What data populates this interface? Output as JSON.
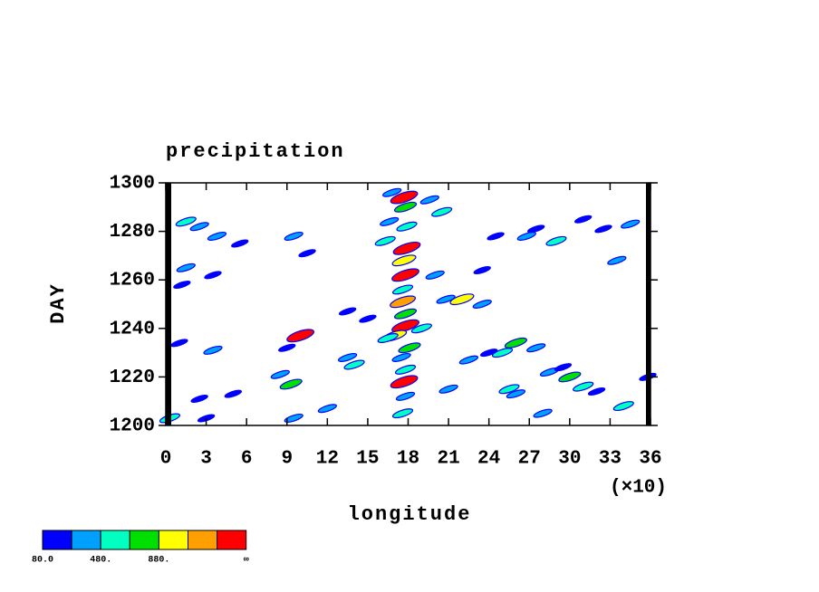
{
  "chart_data": {
    "type": "contour",
    "title": "precipitation",
    "xlabel": "longitude",
    "ylabel": "DAY",
    "x_multiplier": "(×10)",
    "xlim": [
      0,
      36
    ],
    "xticks": [
      0,
      3,
      6,
      9,
      12,
      15,
      18,
      21,
      24,
      27,
      30,
      33,
      36
    ],
    "ylim": [
      1200,
      1300
    ],
    "yticks": [
      1200,
      1220,
      1240,
      1260,
      1280,
      1300
    ],
    "levels": [
      80,
      280,
      480,
      680,
      880,
      1080,
      1280
    ],
    "colors": [
      "#0000ff",
      "#00a0ff",
      "#00ffc0",
      "#00e000",
      "#ffff00",
      "#ffa000",
      "#ff0000"
    ],
    "colorbar_labels": [
      {
        "value": 80,
        "label": "80.0"
      },
      {
        "value": 480,
        "label": "480."
      },
      {
        "value": 880,
        "label": "880."
      }
    ],
    "colorbar_max_label": "∞",
    "x": [
      17.7,
      17.8,
      17.9,
      17.9,
      17.7,
      17.8,
      17.6,
      17.6,
      17.8,
      17.8,
      17.0,
      16.5,
      18.1,
      17.5,
      17.8,
      17.7,
      17.8,
      17.6,
      16.8,
      19.6,
      20.5,
      16.6,
      16.3,
      20.8,
      22.0,
      23.5,
      19.0,
      15.0,
      1.5,
      2.5,
      3.8,
      5.5,
      1.5,
      3.5,
      1.2,
      9.5,
      10.5,
      10.0,
      9.0,
      8.5,
      9.3,
      13.5,
      13.5,
      14.0,
      12.0,
      2.5,
      5.0,
      1.0,
      3.5,
      9.5,
      0.3,
      3.0,
      24.5,
      26.8,
      27.5,
      29.0,
      32.5,
      34.5,
      33.5,
      31.0,
      22.5,
      25.0,
      26.0,
      27.5,
      28.5,
      30.0,
      31.0,
      32.0,
      34.0,
      25.5,
      26.0,
      28.0,
      21.0,
      24.0,
      29.5,
      35.8,
      23.5,
      20.0
    ],
    "y": [
      1294,
      1290,
      1282,
      1273,
      1268,
      1262,
      1256,
      1251,
      1246,
      1241,
      1237,
      1236,
      1232,
      1228,
      1223,
      1218,
      1212,
      1205,
      1296,
      1293,
      1288,
      1284,
      1276,
      1252,
      1252,
      1250,
      1240,
      1244,
      1284,
      1282,
      1278,
      1275,
      1265,
      1262,
      1258,
      1278,
      1271,
      1237,
      1232,
      1221,
      1217,
      1247,
      1228,
      1225,
      1207,
      1211,
      1213,
      1234,
      1231,
      1203,
      1203,
      1203,
      1278,
      1278,
      1281,
      1276,
      1281,
      1283,
      1268,
      1285,
      1227,
      1230,
      1234,
      1232,
      1222,
      1220,
      1216,
      1214,
      1208,
      1215,
      1213,
      1205,
      1215,
      1230,
      1224,
      1220,
      1264,
      1262
    ],
    "values": [
      1300,
      700,
      500,
      1300,
      900,
      1300,
      500,
      1100,
      700,
      1300,
      900,
      500,
      700,
      300,
      500,
      1300,
      300,
      500,
      300,
      300,
      500,
      300,
      500,
      300,
      900,
      300,
      500,
      100,
      500,
      300,
      300,
      100,
      300,
      100,
      100,
      300,
      100,
      1300,
      100,
      300,
      700,
      100,
      300,
      500,
      300,
      100,
      100,
      100,
      300,
      300,
      500,
      100,
      100,
      300,
      100,
      500,
      100,
      300,
      300,
      100,
      300,
      500,
      700,
      300,
      300,
      700,
      500,
      100,
      500,
      500,
      300,
      300,
      300,
      100,
      100,
      100,
      100,
      300
    ]
  }
}
